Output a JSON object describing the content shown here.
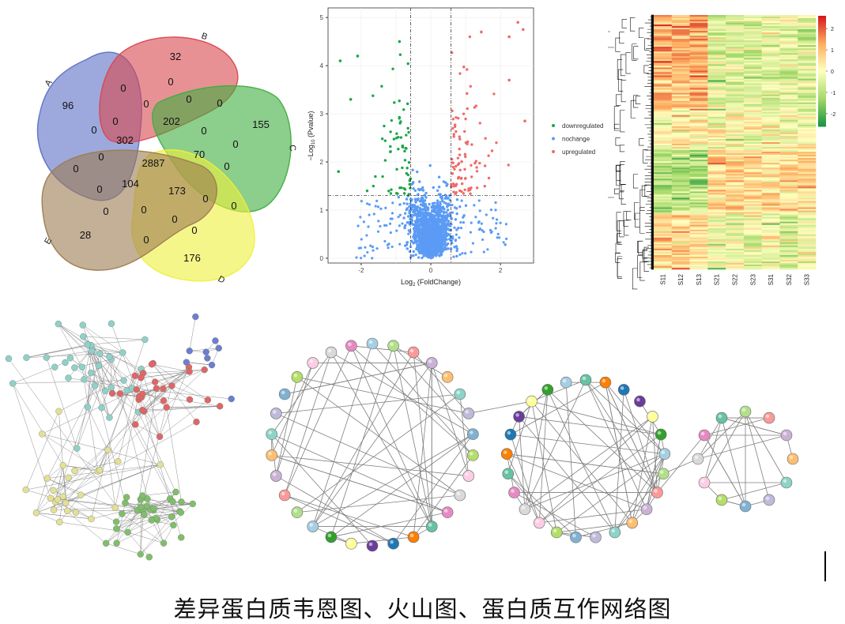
{
  "caption": "差异蛋白质韦恩图、火山图、蛋白质互作网络图",
  "venn": {
    "sets": [
      {
        "label": "A",
        "color": "#5b6fc7"
      },
      {
        "label": "B",
        "color": "#d9474f"
      },
      {
        "label": "C",
        "color": "#3fae3f"
      },
      {
        "label": "D",
        "color": "#eef03a"
      },
      {
        "label": "E",
        "color": "#9d7b52"
      }
    ],
    "counts": [
      "96",
      "32",
      "155",
      "176",
      "28",
      "0",
      "0",
      "0",
      "0",
      "0",
      "202",
      "0",
      "0",
      "0",
      "0",
      "302",
      "0",
      "70",
      "0",
      "0",
      "2887",
      "0",
      "104",
      "173",
      "0",
      "0",
      "0",
      "0",
      "0",
      "0",
      "0"
    ]
  },
  "chart_data": [
    {
      "type": "scatter",
      "subtype": "volcano",
      "xlabel": "Log2 (FoldChange)",
      "ylabel": "−Log10 (Pvalue)",
      "xlim": [
        -2.95,
        2.95
      ],
      "ylim": [
        -0.1,
        5.2
      ],
      "xticks": [
        "-2",
        "0",
        "2"
      ],
      "yticks": [
        "0",
        "1",
        "2",
        "3",
        "4",
        "5"
      ],
      "thresholds": {
        "x": [
          -0.58,
          0.58
        ],
        "y": 1.3
      },
      "legend_position": "right",
      "series": [
        {
          "name": "downregulated",
          "color": "#1aa64a"
        },
        {
          "name": "nochange",
          "color": "#5b9bf5"
        },
        {
          "name": "upregulated",
          "color": "#f06a6a"
        }
      ],
      "highlighted_points": [
        {
          "x": -2.6,
          "y": 4.1,
          "series": "downregulated"
        },
        {
          "x": -2.1,
          "y": 4.2,
          "series": "downregulated"
        },
        {
          "x": -0.9,
          "y": 4.5,
          "series": "downregulated"
        },
        {
          "x": -2.3,
          "y": 3.3,
          "series": "downregulated"
        },
        {
          "x": -2.65,
          "y": 1.8,
          "series": "downregulated"
        },
        {
          "x": 2.5,
          "y": 4.9,
          "series": "upregulated"
        },
        {
          "x": 2.65,
          "y": 4.75,
          "series": "upregulated"
        },
        {
          "x": 2.25,
          "y": 4.6,
          "series": "upregulated"
        },
        {
          "x": 1.45,
          "y": 4.7,
          "series": "upregulated"
        },
        {
          "x": 2.25,
          "y": 3.7,
          "series": "upregulated"
        },
        {
          "x": 2.7,
          "y": 2.85,
          "series": "upregulated"
        }
      ]
    },
    {
      "type": "heatmap",
      "columns": [
        "S11",
        "S12",
        "S13",
        "S21",
        "S22",
        "S23",
        "S31",
        "S32",
        "S33"
      ],
      "colorbar": {
        "ticks": [
          "2",
          "1",
          "0",
          "-1",
          "-2"
        ],
        "range": [
          -2.6,
          2.6
        ],
        "colors": [
          "#1a9641",
          "#a6d96a",
          "#ffffbf",
          "#fdae61",
          "#d7191c"
        ]
      }
    },
    {
      "type": "network",
      "panels": [
        {
          "name": "clustered_network",
          "clusters": [
            {
              "color": "#8fd1c8",
              "nodes": 38
            },
            {
              "color": "#e06666",
              "nodes": 30
            },
            {
              "color": "#6b7fcf",
              "nodes": 9
            },
            {
              "color": "#e4e094",
              "nodes": 26
            },
            {
              "color": "#7fbf6a",
              "nodes": 36
            }
          ]
        },
        {
          "name": "circle_network_1",
          "nodes": 30
        },
        {
          "name": "circle_network_2",
          "nodes": 25
        },
        {
          "name": "circle_network_3",
          "nodes": 12
        }
      ],
      "node_palette": [
        "#a6cee3",
        "#b2df8a",
        "#fb9a99",
        "#cab2d6",
        "#fdbf6f",
        "#8dd3c7",
        "#bebada",
        "#80b1d3",
        "#b3de69",
        "#fccde5",
        "#d9d9d9",
        "#e78ac3",
        "#66c2a5",
        "#ff7f00",
        "#1f78b4",
        "#6a3d9a",
        "#ffff99",
        "#33a02c"
      ]
    }
  ]
}
